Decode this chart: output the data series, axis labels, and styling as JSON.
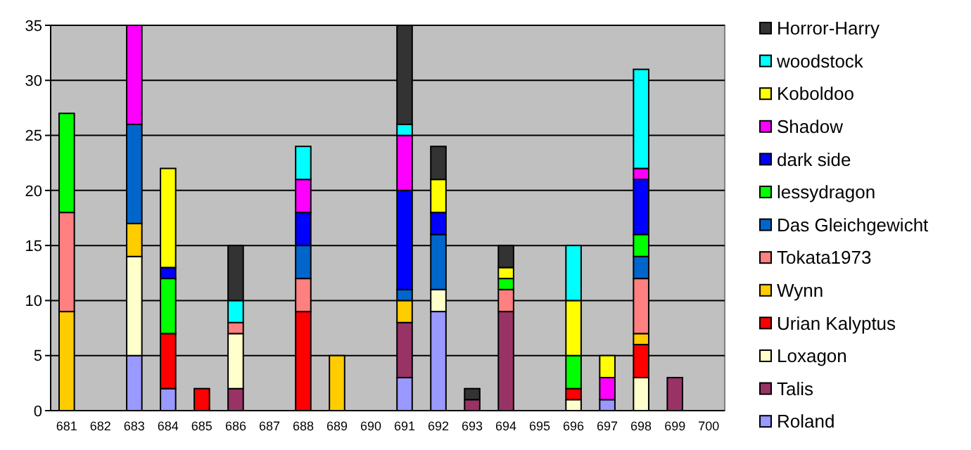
{
  "chart_data": {
    "type": "bar",
    "stacked": true,
    "categories": [
      "681",
      "682",
      "683",
      "684",
      "685",
      "686",
      "687",
      "688",
      "689",
      "690",
      "691",
      "692",
      "693",
      "694",
      "695",
      "696",
      "697",
      "698",
      "699",
      "700"
    ],
    "ylim": [
      0,
      35
    ],
    "yticks": [
      0,
      5,
      10,
      15,
      20,
      25,
      30,
      35
    ],
    "grid": "y",
    "legend": "right",
    "series": [
      {
        "name": "Roland",
        "color": "#9999ff",
        "values": [
          null,
          null,
          5,
          2,
          null,
          null,
          null,
          null,
          null,
          null,
          3,
          9,
          null,
          null,
          null,
          null,
          1,
          null,
          null,
          null
        ]
      },
      {
        "name": "Talis",
        "color": "#993366",
        "values": [
          null,
          null,
          null,
          null,
          null,
          2,
          null,
          null,
          null,
          null,
          5,
          null,
          1,
          9,
          null,
          null,
          null,
          null,
          3,
          null
        ]
      },
      {
        "name": "Loxagon",
        "color": "#ffffcc",
        "values": [
          null,
          null,
          9,
          null,
          null,
          5,
          null,
          null,
          null,
          null,
          null,
          2,
          null,
          null,
          null,
          1,
          null,
          3,
          null,
          null
        ]
      },
      {
        "name": "Urian Kalyptus",
        "color": "#ff0000",
        "values": [
          null,
          null,
          null,
          5,
          2,
          null,
          null,
          9,
          null,
          null,
          null,
          null,
          null,
          null,
          null,
          1,
          null,
          3,
          null,
          null
        ]
      },
      {
        "name": "Wynn",
        "color": "#ffcc00",
        "values": [
          9,
          null,
          3,
          null,
          null,
          null,
          null,
          null,
          5,
          null,
          2,
          null,
          null,
          null,
          null,
          null,
          null,
          1,
          null,
          null
        ]
      },
      {
        "name": "Tokata1973",
        "color": "#ff8080",
        "values": [
          9,
          null,
          null,
          null,
          null,
          1,
          null,
          3,
          null,
          null,
          null,
          null,
          null,
          2,
          null,
          null,
          null,
          5,
          null,
          null
        ]
      },
      {
        "name": "Das Gleichgewicht",
        "color": "#0066cc",
        "values": [
          null,
          null,
          9,
          null,
          null,
          null,
          null,
          3,
          null,
          null,
          1,
          5,
          null,
          null,
          null,
          null,
          null,
          2,
          null,
          null
        ]
      },
      {
        "name": "lessydragon",
        "color": "#00ff00",
        "values": [
          9,
          null,
          null,
          5,
          null,
          null,
          null,
          null,
          null,
          null,
          null,
          null,
          null,
          1,
          null,
          3,
          null,
          2,
          null,
          null
        ]
      },
      {
        "name": "dark side",
        "color": "#0000ff",
        "values": [
          null,
          null,
          null,
          1,
          null,
          null,
          null,
          3,
          null,
          null,
          9,
          2,
          null,
          null,
          null,
          null,
          null,
          5,
          null,
          null
        ]
      },
      {
        "name": "Shadow",
        "color": "#ff00ff",
        "values": [
          null,
          null,
          9,
          null,
          null,
          null,
          null,
          3,
          null,
          null,
          5,
          null,
          null,
          null,
          null,
          null,
          2,
          1,
          null,
          null
        ]
      },
      {
        "name": "Koboldoo",
        "color": "#ffff00",
        "values": [
          null,
          null,
          null,
          9,
          null,
          null,
          null,
          null,
          null,
          null,
          null,
          3,
          null,
          1,
          null,
          5,
          2,
          null,
          null,
          null
        ]
      },
      {
        "name": "woodstock",
        "color": "#00ffff",
        "values": [
          null,
          null,
          null,
          null,
          null,
          2,
          null,
          3,
          null,
          null,
          1,
          null,
          null,
          null,
          null,
          5,
          null,
          9,
          null,
          null
        ]
      },
      {
        "name": "Horror-Harry",
        "color": "#333333",
        "values": [
          null,
          null,
          null,
          null,
          null,
          5,
          null,
          null,
          null,
          null,
          9,
          3,
          1,
          2,
          null,
          null,
          null,
          null,
          null,
          null
        ]
      }
    ]
  }
}
